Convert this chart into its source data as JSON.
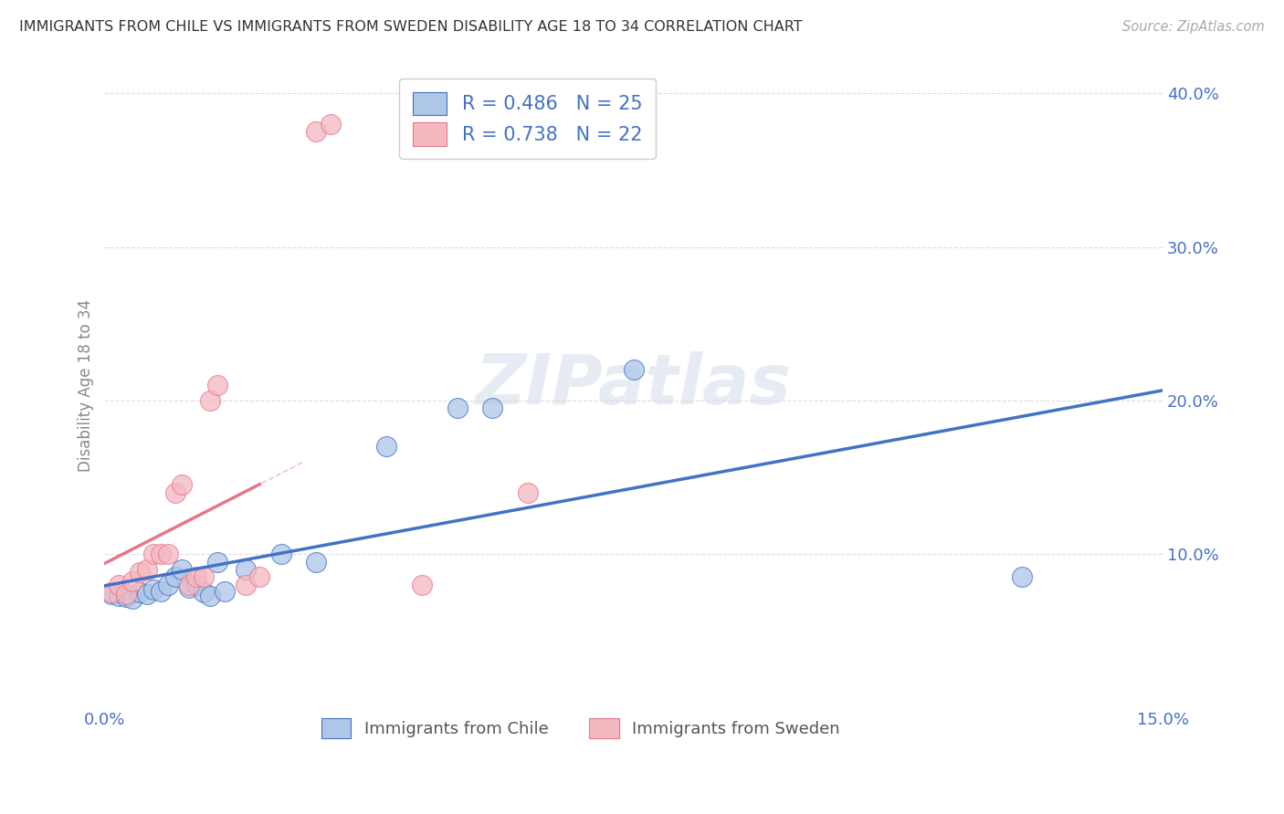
{
  "title": "IMMIGRANTS FROM CHILE VS IMMIGRANTS FROM SWEDEN DISABILITY AGE 18 TO 34 CORRELATION CHART",
  "source": "Source: ZipAtlas.com",
  "ylabel": "Disability Age 18 to 34",
  "xlim": [
    0.0,
    0.15
  ],
  "ylim": [
    0.0,
    0.42
  ],
  "xticks": [
    0.0,
    0.03,
    0.06,
    0.09,
    0.12,
    0.15
  ],
  "yticks": [
    0.0,
    0.1,
    0.2,
    0.3,
    0.4
  ],
  "chile_color": "#aec6e8",
  "sweden_color": "#f4b8c1",
  "chile_line_color": "#4472c4",
  "sweden_line_color": "#e8768a",
  "chile_R": 0.486,
  "chile_N": 25,
  "sweden_R": 0.738,
  "sweden_N": 22,
  "watermark": "ZIPatlas",
  "chile_points": [
    [
      0.001,
      0.074
    ],
    [
      0.002,
      0.073
    ],
    [
      0.003,
      0.072
    ],
    [
      0.004,
      0.071
    ],
    [
      0.005,
      0.075
    ],
    [
      0.006,
      0.074
    ],
    [
      0.007,
      0.077
    ],
    [
      0.008,
      0.076
    ],
    [
      0.009,
      0.08
    ],
    [
      0.01,
      0.085
    ],
    [
      0.011,
      0.09
    ],
    [
      0.012,
      0.078
    ],
    [
      0.013,
      0.08
    ],
    [
      0.014,
      0.075
    ],
    [
      0.015,
      0.073
    ],
    [
      0.016,
      0.095
    ],
    [
      0.017,
      0.076
    ],
    [
      0.02,
      0.09
    ],
    [
      0.025,
      0.1
    ],
    [
      0.03,
      0.095
    ],
    [
      0.04,
      0.17
    ],
    [
      0.05,
      0.195
    ],
    [
      0.055,
      0.195
    ],
    [
      0.075,
      0.22
    ],
    [
      0.13,
      0.085
    ]
  ],
  "sweden_points": [
    [
      0.001,
      0.075
    ],
    [
      0.002,
      0.08
    ],
    [
      0.003,
      0.074
    ],
    [
      0.004,
      0.082
    ],
    [
      0.005,
      0.088
    ],
    [
      0.006,
      0.09
    ],
    [
      0.007,
      0.1
    ],
    [
      0.008,
      0.1
    ],
    [
      0.009,
      0.1
    ],
    [
      0.01,
      0.14
    ],
    [
      0.011,
      0.145
    ],
    [
      0.012,
      0.08
    ],
    [
      0.013,
      0.085
    ],
    [
      0.014,
      0.085
    ],
    [
      0.015,
      0.2
    ],
    [
      0.016,
      0.21
    ],
    [
      0.02,
      0.08
    ],
    [
      0.022,
      0.085
    ],
    [
      0.03,
      0.375
    ],
    [
      0.032,
      0.38
    ],
    [
      0.045,
      0.08
    ],
    [
      0.06,
      0.14
    ]
  ],
  "background_color": "#ffffff",
  "grid_color": "#dddddd",
  "title_color": "#333333",
  "axis_label_color": "#888888",
  "tick_color": "#4472c4",
  "legend_text_color": "#4472c4"
}
